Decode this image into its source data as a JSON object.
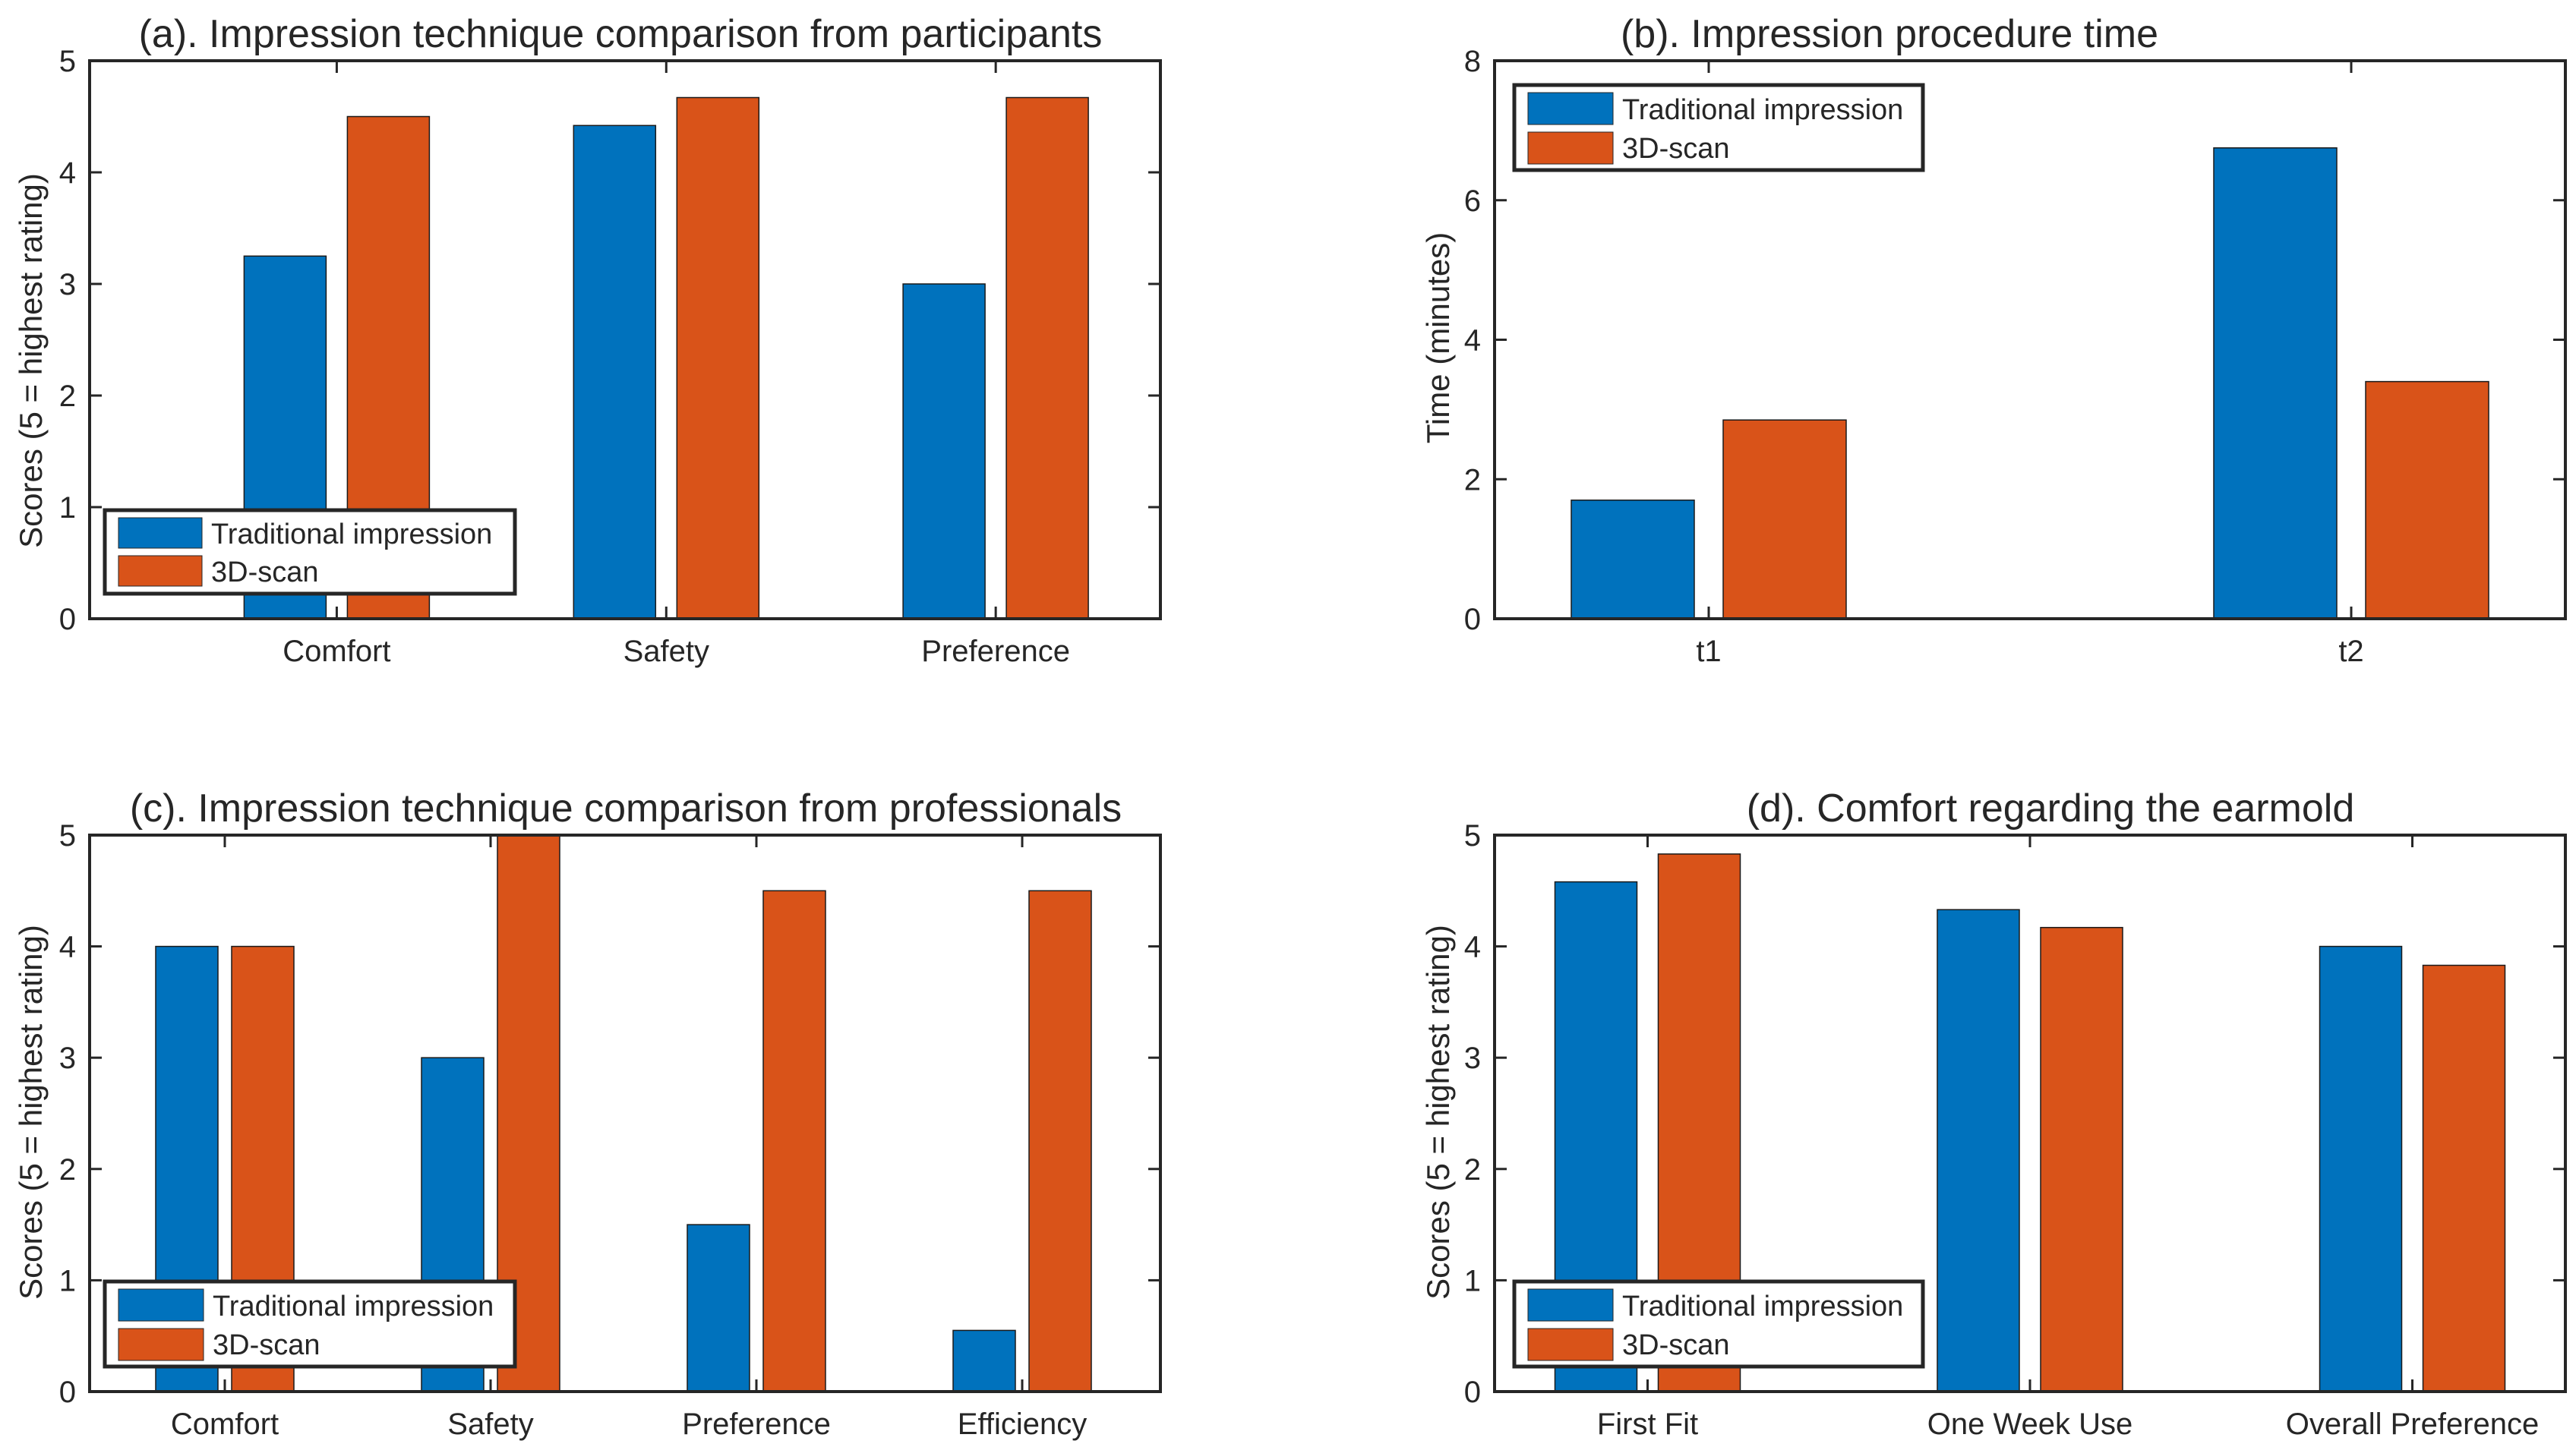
{
  "colors": {
    "traditional": "#0072BD",
    "scan3d": "#D95319",
    "axis": "#262626",
    "background": "#ffffff"
  },
  "chart_data": [
    {
      "id": "a",
      "type": "bar",
      "title": "(a). Impression technique comparison from participants",
      "xlabel": "",
      "ylabel": "Scores (5 = highest rating)",
      "ylim": [
        0,
        5
      ],
      "yticks": [
        "0",
        "1",
        "2",
        "3",
        "4",
        "5"
      ],
      "categories": [
        "Comfort",
        "Safety",
        "Preference"
      ],
      "series": [
        {
          "name": "Traditional impression",
          "values": [
            3.25,
            4.42,
            3.0
          ]
        },
        {
          "name": "3D-scan",
          "values": [
            4.5,
            4.67,
            4.67
          ]
        }
      ],
      "legend_position": "bottom-left"
    },
    {
      "id": "b",
      "type": "bar",
      "title": "(b). Impression procedure time",
      "xlabel": "",
      "ylabel": "Time (minutes)",
      "ylim": [
        0,
        8
      ],
      "yticks": [
        "0",
        "2",
        "4",
        "6",
        "8"
      ],
      "categories": [
        "t1",
        "t2"
      ],
      "series": [
        {
          "name": "Traditional impression",
          "values": [
            1.7,
            6.75
          ]
        },
        {
          "name": "3D-scan",
          "values": [
            2.85,
            3.4
          ]
        }
      ],
      "legend_position": "top-left"
    },
    {
      "id": "c",
      "type": "bar",
      "title": "(c). Impression technique comparison from professionals",
      "xlabel": "",
      "ylabel": "Scores (5 = highest rating)",
      "ylim": [
        0,
        5
      ],
      "yticks": [
        "0",
        "1",
        "2",
        "3",
        "4",
        "5"
      ],
      "categories": [
        "Comfort",
        "Safety",
        "Preference",
        "Efficiency"
      ],
      "series": [
        {
          "name": "Traditional impression",
          "values": [
            4.0,
            3.0,
            1.5,
            0.55
          ]
        },
        {
          "name": "3D-scan",
          "values": [
            4.0,
            5.0,
            4.5,
            4.5
          ]
        }
      ],
      "legend_position": "bottom-left"
    },
    {
      "id": "d",
      "type": "bar",
      "title": "(d). Comfort regarding the earmold",
      "xlabel": "",
      "ylabel": "Scores (5 = highest rating)",
      "ylim": [
        0,
        5
      ],
      "yticks": [
        "0",
        "1",
        "2",
        "3",
        "4",
        "5"
      ],
      "categories": [
        "First Fit",
        "One Week Use",
        "Overall Preference"
      ],
      "series": [
        {
          "name": "Traditional impression",
          "values": [
            4.58,
            4.33,
            4.0
          ]
        },
        {
          "name": "3D-scan",
          "values": [
            4.83,
            4.17,
            3.83
          ]
        }
      ],
      "legend_position": "bottom-left"
    }
  ]
}
